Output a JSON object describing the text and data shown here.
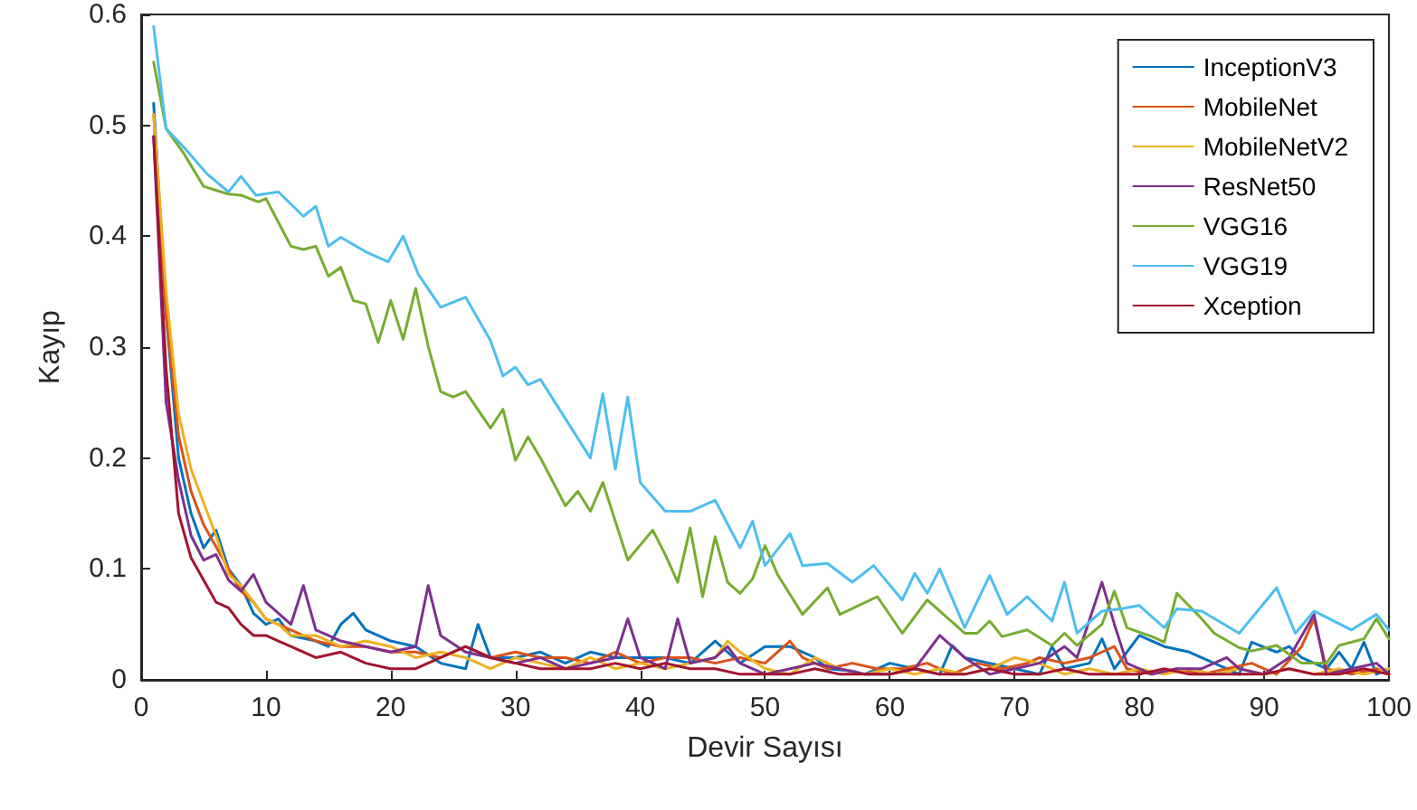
{
  "chart_data": {
    "type": "line",
    "xlabel": "Devir Sayısı",
    "ylabel": "Kayıp",
    "xlim": [
      0,
      100
    ],
    "xticks": [
      0,
      10,
      20,
      30,
      40,
      50,
      60,
      70,
      80,
      90,
      100
    ],
    "ylim": [
      0,
      0.6
    ],
    "yticks": [
      0,
      0.1,
      0.2,
      0.3,
      0.4,
      0.5,
      0.6
    ],
    "grid": false,
    "legend": "top right",
    "marker": "none",
    "line_style": "solid",
    "series": [
      {
        "name": "InceptionV3",
        "color": "#0072bd",
        "x": [
          1,
          2,
          3,
          4,
          5,
          6,
          7,
          8,
          9,
          10,
          11,
          12,
          14,
          15,
          16,
          17,
          18,
          20,
          22,
          24,
          26,
          27,
          28,
          30,
          32,
          34,
          36,
          38,
          40,
          42,
          44,
          46,
          48,
          50,
          52,
          54,
          55,
          57,
          58,
          60,
          62,
          64,
          65,
          66,
          68,
          70,
          72,
          73,
          74,
          76,
          77,
          78,
          80,
          82,
          84,
          86,
          88,
          89,
          91,
          92,
          93,
          95,
          96,
          97,
          98,
          99,
          100
        ],
        "values": [
          0.52,
          0.33,
          0.2,
          0.15,
          0.119,
          0.135,
          0.1,
          0.085,
          0.06,
          0.05,
          0.055,
          0.04,
          0.035,
          0.03,
          0.05,
          0.06,
          0.045,
          0.035,
          0.03,
          0.015,
          0.01,
          0.05,
          0.02,
          0.02,
          0.025,
          0.015,
          0.025,
          0.02,
          0.02,
          0.02,
          0.015,
          0.035,
          0.015,
          0.03,
          0.03,
          0.02,
          0.01,
          0.008,
          0.005,
          0.015,
          0.01,
          0.005,
          0.031,
          0.02,
          0.015,
          0.01,
          0.005,
          0.03,
          0.01,
          0.015,
          0.037,
          0.01,
          0.04,
          0.03,
          0.025,
          0.015,
          0.005,
          0.034,
          0.025,
          0.03,
          0.02,
          0.01,
          0.025,
          0.01,
          0.034,
          0.005,
          0.01
        ]
      },
      {
        "name": "MobileNet",
        "color": "#d95319",
        "x": [
          1,
          2,
          3,
          4,
          5,
          6,
          7,
          8,
          9,
          10,
          12,
          14,
          16,
          18,
          20,
          22,
          24,
          26,
          28,
          30,
          32,
          34,
          36,
          38,
          40,
          42,
          44,
          46,
          48,
          50,
          52,
          53,
          55,
          57,
          59,
          61,
          63,
          65,
          67,
          69,
          71,
          72,
          74,
          76,
          78,
          79,
          81,
          83,
          85,
          87,
          89,
          91,
          93,
          94,
          95,
          97,
          99,
          100
        ],
        "values": [
          0.51,
          0.33,
          0.22,
          0.17,
          0.14,
          0.12,
          0.1,
          0.08,
          0.07,
          0.055,
          0.045,
          0.035,
          0.03,
          0.03,
          0.025,
          0.025,
          0.02,
          0.03,
          0.02,
          0.025,
          0.02,
          0.02,
          0.015,
          0.025,
          0.015,
          0.02,
          0.02,
          0.015,
          0.02,
          0.015,
          0.035,
          0.02,
          0.01,
          0.015,
          0.01,
          0.01,
          0.015,
          0.005,
          0.015,
          0.01,
          0.015,
          0.02,
          0.015,
          0.02,
          0.03,
          0.01,
          0.005,
          0.01,
          0.005,
          0.01,
          0.015,
          0.005,
          0.03,
          0.055,
          0.01,
          0.005,
          0.01,
          0.005
        ]
      },
      {
        "name": "MobileNetV2",
        "color": "#edb120",
        "x": [
          1,
          2,
          3,
          4,
          5,
          6,
          7,
          8,
          9,
          10,
          11,
          12,
          14,
          16,
          18,
          20,
          22,
          24,
          26,
          28,
          30,
          32,
          34,
          36,
          38,
          40,
          42,
          44,
          46,
          47,
          48,
          50,
          52,
          54,
          56,
          58,
          60,
          62,
          64,
          66,
          68,
          70,
          72,
          74,
          76,
          78,
          80,
          82,
          84,
          86,
          88,
          90,
          92,
          94,
          96,
          98,
          100
        ],
        "values": [
          0.51,
          0.35,
          0.24,
          0.19,
          0.16,
          0.13,
          0.095,
          0.085,
          0.07,
          0.055,
          0.05,
          0.04,
          0.04,
          0.03,
          0.035,
          0.03,
          0.02,
          0.025,
          0.02,
          0.01,
          0.02,
          0.015,
          0.01,
          0.02,
          0.01,
          0.015,
          0.01,
          0.015,
          0.02,
          0.035,
          0.025,
          0.01,
          0.005,
          0.02,
          0.01,
          0.005,
          0.01,
          0.005,
          0.01,
          0.005,
          0.01,
          0.02,
          0.015,
          0.005,
          0.01,
          0.005,
          0.01,
          0.005,
          0.01,
          0.005,
          0.01,
          0.005,
          0.01,
          0.005,
          0.01,
          0.005,
          0.01
        ]
      },
      {
        "name": "ResNet50",
        "color": "#7e2f8e",
        "x": [
          1,
          2,
          3,
          4,
          5,
          6,
          7,
          8,
          9,
          10,
          11,
          12,
          13,
          14,
          15,
          16,
          18,
          20,
          22,
          23,
          24,
          26,
          28,
          30,
          32,
          34,
          36,
          38,
          39,
          40,
          42,
          43,
          44,
          46,
          47,
          48,
          50,
          52,
          54,
          56,
          58,
          60,
          62,
          63,
          64,
          66,
          68,
          70,
          72,
          74,
          75,
          77,
          78,
          79,
          81,
          83,
          85,
          87,
          88,
          90,
          92,
          94,
          95,
          97,
          99,
          100
        ],
        "values": [
          0.49,
          0.25,
          0.18,
          0.13,
          0.108,
          0.113,
          0.09,
          0.08,
          0.095,
          0.07,
          0.06,
          0.05,
          0.085,
          0.045,
          0.04,
          0.035,
          0.03,
          0.025,
          0.03,
          0.085,
          0.04,
          0.025,
          0.02,
          0.015,
          0.02,
          0.01,
          0.015,
          0.02,
          0.055,
          0.02,
          0.01,
          0.055,
          0.015,
          0.02,
          0.03,
          0.015,
          0.005,
          0.01,
          0.015,
          0.01,
          0.005,
          0.005,
          0.01,
          0.025,
          0.04,
          0.02,
          0.005,
          0.01,
          0.015,
          0.03,
          0.02,
          0.088,
          0.05,
          0.015,
          0.005,
          0.01,
          0.01,
          0.02,
          0.01,
          0.005,
          0.02,
          0.059,
          0.005,
          0.01,
          0.015,
          0.005
        ]
      },
      {
        "name": "VGG16",
        "color": "#77ac30",
        "x": [
          1,
          2,
          3.4,
          5,
          7,
          8,
          9.4,
          10,
          12,
          13,
          14,
          15,
          16,
          17,
          18,
          19,
          20,
          21,
          22,
          23,
          24,
          25,
          26,
          28,
          29,
          30,
          31,
          32,
          34,
          35,
          36,
          37,
          39,
          41,
          42,
          43,
          44,
          45,
          46,
          47,
          48,
          49,
          50,
          51,
          53,
          55,
          56,
          59,
          61,
          63,
          66,
          67,
          68,
          69,
          71,
          73,
          74,
          75,
          77,
          78,
          79,
          81,
          82,
          83,
          85,
          86,
          88,
          89,
          91,
          93,
          95,
          96,
          98,
          99,
          100
        ],
        "values": [
          0.557,
          0.497,
          0.475,
          0.445,
          0.438,
          0.437,
          0.431,
          0.434,
          0.391,
          0.388,
          0.391,
          0.364,
          0.372,
          0.342,
          0.339,
          0.304,
          0.342,
          0.307,
          0.353,
          0.301,
          0.26,
          0.255,
          0.26,
          0.227,
          0.244,
          0.198,
          0.219,
          0.2,
          0.157,
          0.17,
          0.152,
          0.178,
          0.108,
          0.135,
          0.113,
          0.088,
          0.137,
          0.075,
          0.129,
          0.088,
          0.078,
          0.091,
          0.121,
          0.095,
          0.059,
          0.083,
          0.059,
          0.075,
          0.042,
          0.072,
          0.042,
          0.042,
          0.053,
          0.039,
          0.045,
          0.031,
          0.042,
          0.031,
          0.05,
          0.08,
          0.047,
          0.039,
          0.034,
          0.078,
          0.055,
          0.042,
          0.029,
          0.026,
          0.031,
          0.015,
          0.015,
          0.031,
          0.037,
          0.055,
          0.037
        ]
      },
      {
        "name": "VGG19",
        "color": "#4dbeee",
        "x": [
          1,
          2,
          3.6,
          5.3,
          7,
          8,
          9.2,
          11,
          13,
          14,
          15,
          16,
          18,
          19.8,
          21,
          22.2,
          24,
          26,
          28,
          29,
          30,
          31,
          32,
          36,
          37,
          38,
          39,
          40,
          42,
          44,
          46,
          48,
          49,
          50,
          52,
          53,
          55,
          57,
          58.7,
          61,
          62,
          63,
          64,
          66,
          68,
          69.4,
          71,
          73,
          74,
          75,
          77,
          78.5,
          80,
          82,
          83,
          85,
          88,
          91,
          92.5,
          94,
          97,
          99,
          100
        ],
        "values": [
          0.589,
          0.497,
          0.478,
          0.456,
          0.44,
          0.454,
          0.437,
          0.44,
          0.418,
          0.427,
          0.391,
          0.399,
          0.386,
          0.377,
          0.4,
          0.366,
          0.336,
          0.345,
          0.306,
          0.274,
          0.282,
          0.266,
          0.271,
          0.2,
          0.258,
          0.19,
          0.255,
          0.178,
          0.152,
          0.152,
          0.162,
          0.119,
          0.143,
          0.103,
          0.132,
          0.103,
          0.105,
          0.088,
          0.103,
          0.072,
          0.096,
          0.078,
          0.1,
          0.047,
          0.094,
          0.059,
          0.075,
          0.053,
          0.088,
          0.042,
          0.062,
          0.064,
          0.067,
          0.047,
          0.064,
          0.062,
          0.042,
          0.083,
          0.042,
          0.062,
          0.045,
          0.059,
          0.045
        ]
      },
      {
        "name": "Xception",
        "color": "#a2142f",
        "x": [
          1,
          2,
          3,
          4,
          5,
          6,
          7,
          8,
          9,
          10,
          11,
          12,
          14,
          16,
          18,
          20,
          22,
          24,
          26,
          28,
          30,
          32,
          34,
          36,
          38,
          40,
          42,
          44,
          46,
          48,
          50,
          52,
          54,
          56,
          58,
          60,
          62,
          64,
          66,
          68,
          70,
          72,
          74,
          76,
          78,
          80,
          82,
          84,
          86,
          88,
          90,
          92,
          94,
          96,
          98,
          100
        ],
        "values": [
          0.49,
          0.28,
          0.15,
          0.11,
          0.09,
          0.07,
          0.065,
          0.05,
          0.04,
          0.04,
          0.035,
          0.03,
          0.02,
          0.025,
          0.015,
          0.01,
          0.01,
          0.02,
          0.03,
          0.02,
          0.015,
          0.01,
          0.01,
          0.01,
          0.015,
          0.01,
          0.015,
          0.01,
          0.01,
          0.005,
          0.005,
          0.005,
          0.01,
          0.005,
          0.005,
          0.005,
          0.01,
          0.005,
          0.005,
          0.01,
          0.005,
          0.005,
          0.01,
          0.005,
          0.005,
          0.005,
          0.01,
          0.005,
          0.005,
          0.005,
          0.005,
          0.01,
          0.005,
          0.005,
          0.01,
          0.005
        ]
      }
    ]
  }
}
